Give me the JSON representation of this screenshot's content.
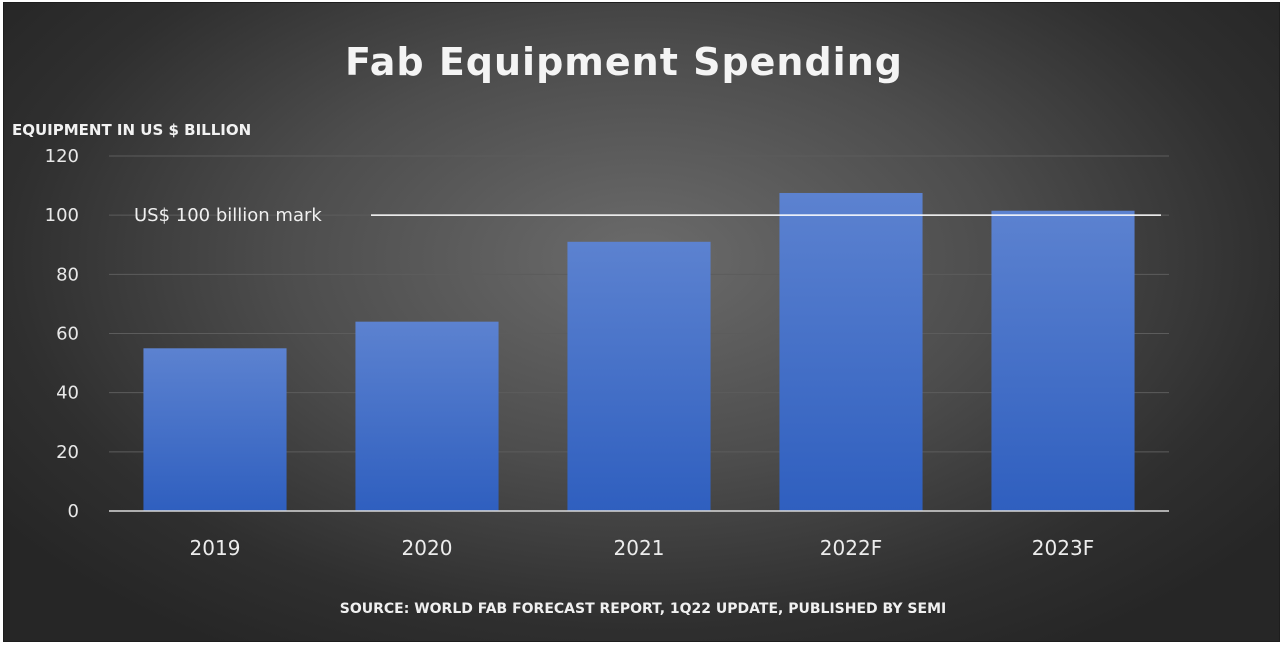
{
  "chart_data": {
    "type": "bar",
    "title": "Fab Equipment Spending",
    "ylabel": "EQUIPMENT IN US $ BILLION",
    "xlabel": "",
    "categories": [
      "2019",
      "2020",
      "2021",
      "2022F",
      "2023F"
    ],
    "values": [
      55,
      64,
      91,
      107.5,
      101.5
    ],
    "ylim": [
      0,
      120
    ],
    "yticks": [
      "0",
      "20",
      "40",
      "60",
      "80",
      "100",
      "120"
    ],
    "grid": true,
    "reference_line": {
      "value": 100,
      "label": "US$ 100 billion mark"
    },
    "source": "SOURCE: WORLD FAB FORECAST REPORT, 1Q22 UPDATE, PUBLISHED BY SEMI",
    "colors": {
      "bar_top": "#5c82d0",
      "bar_bottom": "#2f5fbf",
      "gridline": "#5c5c5c",
      "axis": "#d9d9d9",
      "reference_line": "#ffffff"
    }
  }
}
